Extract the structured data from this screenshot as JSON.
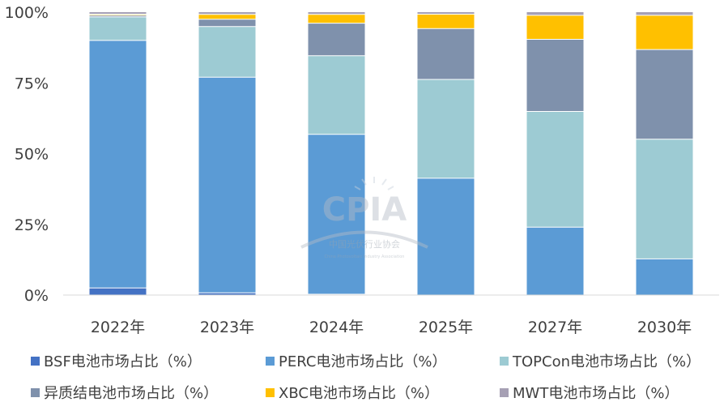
{
  "chart_data": {
    "type": "bar",
    "stacked": true,
    "percent_stacked": true,
    "title": "",
    "xlabel": "",
    "ylabel": "",
    "categories": [
      "2022年",
      "2023年",
      "2024年",
      "2025年",
      "2027年",
      "2030年"
    ],
    "y_ticks": [
      "0%",
      "25%",
      "50%",
      "75%",
      "100%"
    ],
    "ylim": [
      0,
      100
    ],
    "grid": false,
    "legend_position": "bottom",
    "series": [
      {
        "name": "BSF电池市场占比（%）",
        "color": "#4472C4",
        "values": [
          2.5,
          0.8,
          0.3,
          0.0,
          0.0,
          0.0
        ]
      },
      {
        "name": "PERC电池市场占比（%）",
        "color": "#5B9BD5",
        "values": [
          87.5,
          76.2,
          56.5,
          41.3,
          24.0,
          12.8
        ]
      },
      {
        "name": "TOPCon电池市场占比（%）",
        "color": "#9DCBD3",
        "values": [
          8.3,
          17.9,
          27.8,
          34.9,
          40.9,
          42.3
        ]
      },
      {
        "name": "异质结电池市场占比（%）",
        "color": "#7F91AC",
        "values": [
          0.6,
          2.6,
          11.5,
          18.0,
          25.5,
          31.7
        ]
      },
      {
        "name": "XBC电池市场占比（%）",
        "color": "#FFC000",
        "values": [
          0.4,
          1.7,
          3.1,
          5.1,
          8.5,
          12.1
        ]
      },
      {
        "name": "MWT电池市场占比（%）",
        "color": "#A6A0B4",
        "values": [
          0.7,
          0.8,
          0.8,
          0.7,
          1.1,
          1.1
        ]
      }
    ]
  },
  "watermark": {
    "logo_text": "CPIA",
    "org_cn": "中国光伏行业协会",
    "org_en": "China Photovoltaic Industry Association"
  }
}
